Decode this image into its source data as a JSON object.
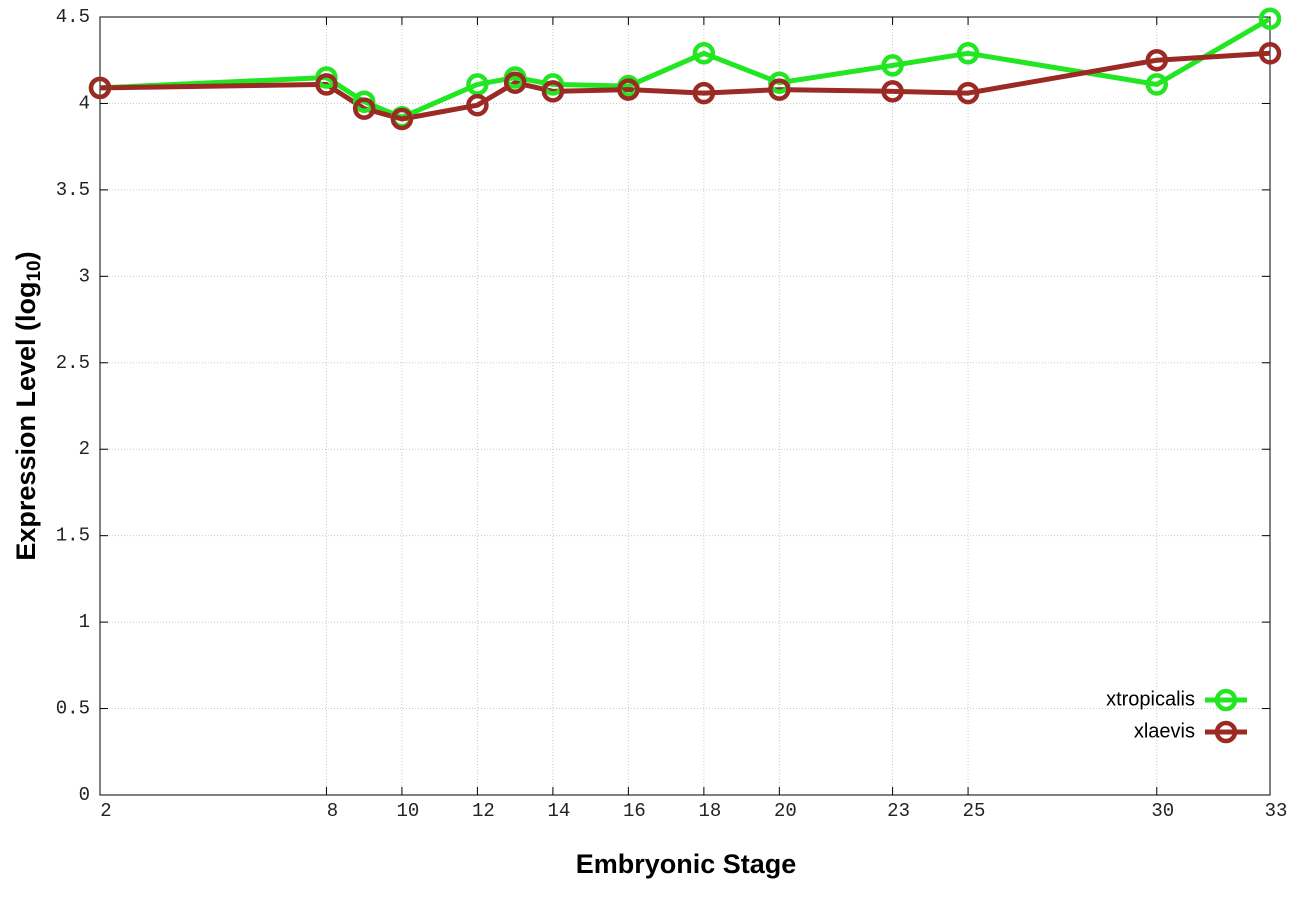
{
  "chart_data": {
    "type": "line",
    "xlabel": "Embryonic Stage",
    "ylabel": [
      "Expression Level (log",
      "10",
      ")"
    ],
    "x": [
      2,
      8,
      9,
      10,
      12,
      13,
      14,
      16,
      18,
      20,
      23,
      25,
      30,
      33
    ],
    "series": [
      {
        "name": "xtropicalis",
        "color": "#22e622",
        "values": [
          4.09,
          4.15,
          4.01,
          3.92,
          4.11,
          4.15,
          4.11,
          4.1,
          4.29,
          4.12,
          4.22,
          4.29,
          4.11,
          4.49
        ]
      },
      {
        "name": "xlaevis",
        "color": "#9b2a24",
        "values": [
          4.09,
          4.11,
          3.97,
          3.91,
          3.99,
          4.12,
          4.07,
          4.08,
          4.06,
          4.08,
          4.07,
          4.06,
          4.25,
          4.29
        ]
      }
    ],
    "xlim": [
      2,
      33
    ],
    "xticks": [
      2,
      8,
      10,
      12,
      14,
      16,
      18,
      20,
      23,
      25,
      30,
      33
    ],
    "ylim": [
      0,
      4.5
    ],
    "yticks": [
      0,
      0.5,
      1,
      1.5,
      2,
      2.5,
      3,
      3.5,
      4,
      4.5
    ],
    "grid": true,
    "legend": "lower right",
    "marker": "open-circle"
  }
}
